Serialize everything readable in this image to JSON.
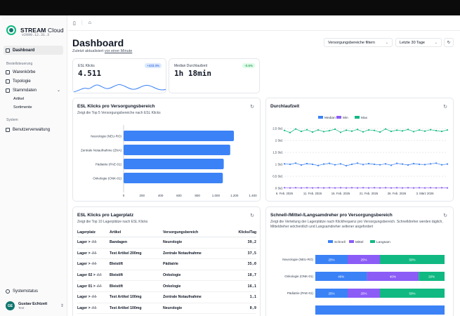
{
  "app": {
    "name_bold": "STREAM",
    "name_light": " Cloud",
    "version": "v2099.12.31.3"
  },
  "sidebar": {
    "items_top": [
      {
        "label": "Dashboard",
        "active": true
      }
    ],
    "section_order": "Bestellsteuerung",
    "order_items": [
      {
        "label": "Warenkörbe"
      },
      {
        "label": "Topologie"
      },
      {
        "label": "Stammdaten"
      }
    ],
    "stammdaten_sub": [
      "Artikel",
      "Sortimente"
    ],
    "section_system": "System",
    "system_items": [
      {
        "label": "Benutzerverwaltung"
      }
    ],
    "status": "Systemstatus",
    "user": {
      "initials": "GE",
      "name": "Gustav Echtzeit",
      "role": "Test"
    }
  },
  "header": {
    "title": "Dashboard",
    "subtitle_prefix": "Zuletzt aktualisiert ",
    "subtitle_link": "vor einer Minute",
    "filter_placeholder": "Versorgungsbereiche filtern",
    "range": "Letzte 30 Tage"
  },
  "kpi": [
    {
      "label": "ESL Klicks",
      "value": "4.511",
      "delta": "+433.3%",
      "tone": "blue"
    },
    {
      "label": "Median Durchlaufzeit",
      "value": "1h 18min",
      "delta": "-0.6%",
      "tone": "green"
    }
  ],
  "cards": {
    "esl_bereich": {
      "title": "ESL Klicks pro Versorgungsbereich",
      "sub": "Zeigt die Top 5 Versorgungsbereiche nach ESL Klicks"
    },
    "durchlauf": {
      "title": "Durchlaufzeit"
    },
    "lagerplatz": {
      "title": "ESL Klicks pro Lagerplatz",
      "sub": "Zeigt die Top 10 Lagerplätze nach ESL Klicks"
    },
    "dreher": {
      "title": "Schnell-/Mittel-/Langsamdreher pro Versorgungsbereich",
      "sub": "Zeigt die Verteilung der Lagerplätze nach Klickfrequenz pro Versorgungsbereich. Schnelldreher werden täglich, Mitteldreher wöchentlich und Langsamdreher seltener angefordert"
    }
  },
  "table": {
    "headers": [
      "Lagerplatz",
      "Artikel",
      "Versorgungsbereich",
      "Klicks/Tag"
    ],
    "rows": [
      [
        "Lager > -/-/-",
        "Bandagen",
        "Neurologie",
        "39,2"
      ],
      [
        "Lager > -/-/-",
        "Test Artikel 200mg",
        "Zentrale Notaufnahme",
        "37,5"
      ],
      [
        "Lager > -/-/-",
        "Bleistift",
        "Pädiatrie",
        "35,0"
      ],
      [
        "Lager 02 > -/-/-",
        "Bleistift",
        "Onkologie",
        "18,7"
      ],
      [
        "Lager 01 > -/-/-",
        "Bleistift",
        "Onkologie",
        "16,1"
      ],
      [
        "Lager > -/-/-",
        "Test Artikel 100mg",
        "Zentrale Notaufnahme",
        "1,1"
      ],
      [
        "Lager > -/-/-",
        "Test Artikel 100mg",
        "Neurologie",
        "0,9"
      ]
    ]
  },
  "chart_data": [
    {
      "type": "bar",
      "orientation": "horizontal",
      "title": "ESL Klicks pro Versorgungsbereich",
      "categories": [
        "Neurologie (NEU-RO)",
        "Zentrale Notaufnahme (ZNA)",
        "Pädiatrie (PAE-01)",
        "Onkologie (ONK-01)"
      ],
      "values": [
        1195,
        1155,
        1085,
        1075
      ],
      "xticks": [
        "0",
        "200",
        "400",
        "600",
        "800",
        "1.000",
        "1.200",
        "1.400"
      ],
      "xlim": [
        0,
        1400
      ],
      "color": "#3b82f6"
    },
    {
      "type": "line",
      "title": "Durchlaufzeit",
      "series": [
        {
          "name": "Median",
          "color": "#3b82f6",
          "values": [
            1.02,
            1.0,
            1.05,
            0.97,
            1.03,
            1.0,
            0.95,
            1.01,
            1.04,
            0.98,
            1.02,
            0.94,
            1.0,
            1.05,
            0.99,
            1.03,
            1.0,
            0.98,
            1.02,
            0.96,
            1.04,
            1.01,
            0.97,
            1.03,
            1.0,
            0.99,
            1.02,
            1.05,
            0.98,
            1.01
          ]
        },
        {
          "name": "Min",
          "color": "#8b5cf6",
          "values": [
            0.02,
            0.01,
            0.02,
            0.01,
            0.02,
            0.01,
            0.02,
            0.01,
            0.02,
            0.01,
            0.02,
            0.01,
            0.02,
            0.01,
            0.02,
            0.01,
            0.02,
            0.01,
            0.02,
            0.01,
            0.02,
            0.01,
            0.02,
            0.01,
            0.02,
            0.01,
            0.02,
            0.01,
            0.02,
            0.01
          ]
        },
        {
          "name": "Max",
          "color": "#10b981",
          "values": [
            2.42,
            2.33,
            2.48,
            2.38,
            2.45,
            2.35,
            2.44,
            2.37,
            2.41,
            2.47,
            2.34,
            2.43,
            2.39,
            2.46,
            2.36,
            2.44,
            2.42,
            2.35,
            2.48,
            2.38,
            2.43,
            2.4,
            2.46,
            2.37,
            2.44,
            2.39,
            2.45,
            2.41,
            2.38,
            2.44
          ]
        }
      ],
      "yticks": [
        "0 Std.",
        "0,5 Std.",
        "1 Std.",
        "1,5 Std.",
        "2 Std.",
        "2,5 Std."
      ],
      "ylim": [
        0,
        2.5
      ],
      "xticks": [
        "6. Feb. 2026",
        "11. Feb. 2026",
        "16. Feb. 2026",
        "21. Feb. 2026",
        "26. Feb. 2026",
        "3. März 2026"
      ],
      "legend": "top"
    },
    {
      "type": "bar",
      "orientation": "horizontal",
      "stacked": true,
      "title": "Schnell-/Mittel-/Langsamdreher pro Versorgungsbereich",
      "categories": [
        "Neurologie (NEU-RO)",
        "Onkologie (ONK-01)",
        "Pädiatrie (PAE-01)"
      ],
      "series": [
        {
          "name": "Schnell",
          "color": "#3b82f6",
          "values": [
            25,
            40,
            25
          ]
        },
        {
          "name": "Mittel",
          "color": "#8b5cf6",
          "values": [
            25,
            40,
            25
          ]
        },
        {
          "name": "Langsam",
          "color": "#10b981",
          "values": [
            50,
            20,
            50
          ]
        }
      ],
      "labels": [
        [
          "25%",
          "25%",
          "50%"
        ],
        [
          "40%",
          "40%",
          "20%"
        ],
        [
          "25%",
          "25%",
          "50%"
        ]
      ],
      "legend": "top"
    }
  ]
}
